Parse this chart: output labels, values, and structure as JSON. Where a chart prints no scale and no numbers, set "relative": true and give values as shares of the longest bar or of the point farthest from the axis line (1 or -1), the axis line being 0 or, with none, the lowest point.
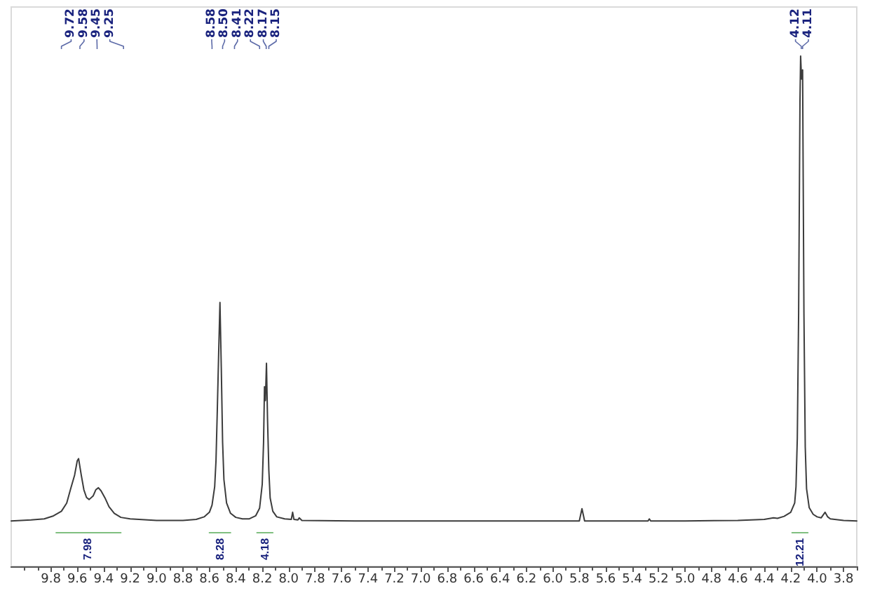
{
  "chart_data": {
    "type": "line",
    "relative": true,
    "marker": "none",
    "x": [
      10.1,
      9.95,
      9.85,
      9.78,
      9.72,
      9.68,
      9.65,
      9.62,
      9.6,
      9.59,
      9.57,
      9.55,
      9.53,
      9.51,
      9.48,
      9.46,
      9.44,
      9.42,
      9.39,
      9.36,
      9.32,
      9.27,
      9.2,
      9.0,
      8.8,
      8.7,
      8.64,
      8.6,
      8.58,
      8.56,
      8.55,
      8.54,
      8.53,
      8.52,
      8.51,
      8.5,
      8.49,
      8.47,
      8.44,
      8.4,
      8.35,
      8.3,
      8.25,
      8.22,
      8.2,
      8.19,
      8.183,
      8.176,
      8.168,
      8.16,
      8.15,
      8.14,
      8.12,
      8.09,
      8.03,
      7.98,
      7.97,
      7.96,
      7.93,
      7.92,
      7.9,
      7.5,
      7.0,
      6.5,
      6.0,
      5.8,
      5.78,
      5.76,
      5.5,
      5.28,
      5.27,
      5.26,
      5.0,
      4.6,
      4.4,
      4.33,
      4.3,
      4.25,
      4.2,
      4.17,
      4.16,
      4.15,
      4.14,
      4.13,
      4.125,
      4.118,
      4.11,
      4.1,
      4.09,
      4.08,
      4.06,
      4.03,
      4.0,
      3.97,
      3.94,
      3.92,
      3.9,
      3.8,
      3.7
    ],
    "series": [
      {
        "color": "#3c3c3c",
        "values": [
          0.089,
          0.091,
          0.093,
          0.099,
          0.108,
          0.124,
          0.152,
          0.179,
          0.207,
          0.211,
          0.179,
          0.15,
          0.135,
          0.131,
          0.138,
          0.15,
          0.154,
          0.148,
          0.134,
          0.117,
          0.104,
          0.096,
          0.093,
          0.09,
          0.09,
          0.092,
          0.097,
          0.106,
          0.12,
          0.156,
          0.207,
          0.307,
          0.416,
          0.517,
          0.389,
          0.243,
          0.17,
          0.124,
          0.104,
          0.096,
          0.093,
          0.093,
          0.099,
          0.114,
          0.161,
          0.243,
          0.352,
          0.325,
          0.398,
          0.289,
          0.188,
          0.134,
          0.108,
          0.097,
          0.093,
          0.092,
          0.106,
          0.092,
          0.091,
          0.095,
          0.09,
          0.089,
          0.089,
          0.089,
          0.089,
          0.089,
          0.113,
          0.089,
          0.089,
          0.089,
          0.093,
          0.089,
          0.089,
          0.09,
          0.092,
          0.095,
          0.094,
          0.098,
          0.106,
          0.124,
          0.156,
          0.252,
          0.498,
          0.909,
          1,
          0.955,
          0.973,
          0.498,
          0.234,
          0.152,
          0.115,
          0.102,
          0.097,
          0.095,
          0.106,
          0.097,
          0.093,
          0.09,
          0.089
        ]
      },
      {
        "color": "#7fbf7f",
        "x": [
          9.76,
          9.27
        ],
        "values": [
          0.066,
          0.066
        ]
      },
      {
        "color": "#7fbf7f",
        "x": [
          8.6,
          8.44
        ],
        "values": [
          0.066,
          0.066
        ]
      },
      {
        "color": "#7fbf7f",
        "x": [
          8.24,
          8.12
        ],
        "values": [
          0.066,
          0.066
        ]
      },
      {
        "color": "#7fbf7f",
        "x": [
          4.19,
          4.07
        ],
        "values": [
          0.066,
          0.066
        ]
      }
    ],
    "xlim": [
      10.1,
      3.7
    ],
    "xticks": [
      {
        "value": 10.0,
        "label": null
      },
      {
        "value": 9.9,
        "label": null
      },
      9.8,
      {
        "value": 9.7,
        "label": null
      },
      9.6,
      {
        "value": 9.5,
        "label": null
      },
      9.4,
      {
        "value": 9.3,
        "label": null
      },
      9.2,
      {
        "value": 9.1,
        "label": null
      },
      {
        "value": 9,
        "label": "9.0"
      },
      {
        "value": 8.9,
        "label": null
      },
      8.8,
      {
        "value": 8.7,
        "label": null
      },
      8.6,
      {
        "value": 8.5,
        "label": null
      },
      8.4,
      {
        "value": 8.3,
        "label": null
      },
      8.2,
      {
        "value": 8.1,
        "label": null
      },
      {
        "value": 8,
        "label": "8.0"
      },
      {
        "value": 7.9,
        "label": null
      },
      7.8,
      {
        "value": 7.7,
        "label": null
      },
      7.6,
      {
        "value": 7.5,
        "label": null
      },
      7.4,
      {
        "value": 7.3,
        "label": null
      },
      7.2,
      {
        "value": 7.1,
        "label": null
      },
      {
        "value": 7,
        "label": "7.0"
      },
      {
        "value": 6.9,
        "label": null
      },
      6.8,
      {
        "value": 6.7,
        "label": null
      },
      6.6,
      {
        "value": 6.5,
        "label": null
      },
      6.4,
      {
        "value": 6.3,
        "label": null
      },
      6.2,
      {
        "value": 6.1,
        "label": null
      },
      {
        "value": 6,
        "label": "6.0"
      },
      {
        "value": 5.9,
        "label": null
      },
      5.8,
      {
        "value": 5.7,
        "label": null
      },
      5.6,
      {
        "value": 5.5,
        "label": null
      },
      5.4,
      {
        "value": 5.3,
        "label": null
      },
      5.2,
      {
        "value": 5.1,
        "label": null
      },
      {
        "value": 5,
        "label": "5.0"
      },
      {
        "value": 4.9,
        "label": null
      },
      4.8,
      {
        "value": 4.7,
        "label": null
      },
      4.6,
      {
        "value": 4.5,
        "label": null
      },
      4.4,
      {
        "value": 4.3,
        "label": null
      },
      4.2,
      {
        "value": 4.1,
        "label": null
      },
      {
        "value": 4,
        "label": "4.0"
      },
      {
        "value": 3.9,
        "label": null
      },
      3.8,
      {
        "value": 3.7,
        "label": null
      }
    ],
    "annotations": [
      {
        "text": "9.72",
        "x": 9.72
      },
      {
        "text": "9.58",
        "x": 9.58
      },
      {
        "text": "9.45",
        "x": 9.45
      },
      {
        "text": "9.25",
        "x": 9.25
      },
      {
        "text": "8.58",
        "x": 8.58
      },
      {
        "text": "8.50",
        "x": 8.5
      },
      {
        "text": "8.41",
        "x": 8.41
      },
      {
        "text": "8.22",
        "x": 8.22
      },
      {
        "text": "8.17",
        "x": 8.17
      },
      {
        "text": "8.15",
        "x": 8.15
      },
      {
        "text": "4.12",
        "x": 4.12
      },
      {
        "text": "4.11",
        "x": 4.11
      },
      {
        "text": "7.98",
        "x": 9.52,
        "y": 0.066
      },
      {
        "text": "8.28",
        "x": 8.52,
        "y": 0.066
      },
      {
        "text": "4.18",
        "x": 8.18,
        "y": 0.066
      },
      {
        "text": "12.21",
        "x": 4.13,
        "y": 0.066
      }
    ]
  }
}
